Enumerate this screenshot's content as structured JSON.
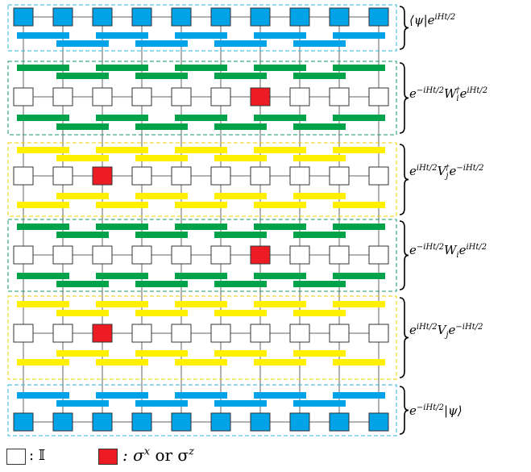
{
  "colors": {
    "blue_gate": "#00a2e8",
    "green_gate": "#00a24a",
    "yellow_gate": "#fff000",
    "red_site": "#ed1c24",
    "identity_site": "#ffffff",
    "wire": "#666666",
    "blue_frame": "#29b6d6",
    "green_frame": "#1a9a6a",
    "yellow_frame": "#f0d000"
  },
  "layers": [
    {
      "name": "bra",
      "frame": "blue",
      "gate_color": "blue",
      "red_column": null
    },
    {
      "name": "w-dagger",
      "frame": "green",
      "gate_color": "green",
      "red_column": 7
    },
    {
      "name": "v-dagger",
      "frame": "yellow",
      "gate_color": "yellow",
      "red_column": 3
    },
    {
      "name": "w",
      "frame": "green",
      "gate_color": "green",
      "red_column": 7
    },
    {
      "name": "v",
      "frame": "yellow",
      "gate_color": "yellow",
      "red_column": 3
    },
    {
      "name": "ket",
      "frame": "blue",
      "gate_color": "blue",
      "red_column": null
    }
  ],
  "labels": {
    "bra": {
      "a": "⟨ψ|e",
      "a_sup": "iHt/2"
    },
    "w_dagger": {
      "a": "e",
      "a_sup": "−iHt/2",
      "b": "W",
      "b_sub": "i",
      "b_sup": "†",
      "c": "e",
      "c_sup": "iHt/2"
    },
    "v_dagger": {
      "a": "e",
      "a_sup": "iHt/2",
      "b": "V",
      "b_sub": "j",
      "b_sup": "†",
      "c": "e",
      "c_sup": "−iHt/2"
    },
    "w": {
      "a": "e",
      "a_sup": "−iHt/2",
      "b": "W",
      "b_sub": "i",
      "c": "e",
      "c_sup": "iHt/2"
    },
    "v": {
      "a": "e",
      "a_sup": "iHt/2",
      "b": "V",
      "b_sub": "j",
      "c": "e",
      "c_sup": "−iHt/2"
    },
    "ket": {
      "a": "e",
      "a_sup": "−iHt/2",
      "b": "|ψ⟩"
    }
  },
  "legend": {
    "identity_text": ": 𝕀",
    "pauli_text": ": σ",
    "pauli_sup_x": "x",
    "or_text": " or σ",
    "pauli_sup_z": "z"
  },
  "n_sites": 10
}
